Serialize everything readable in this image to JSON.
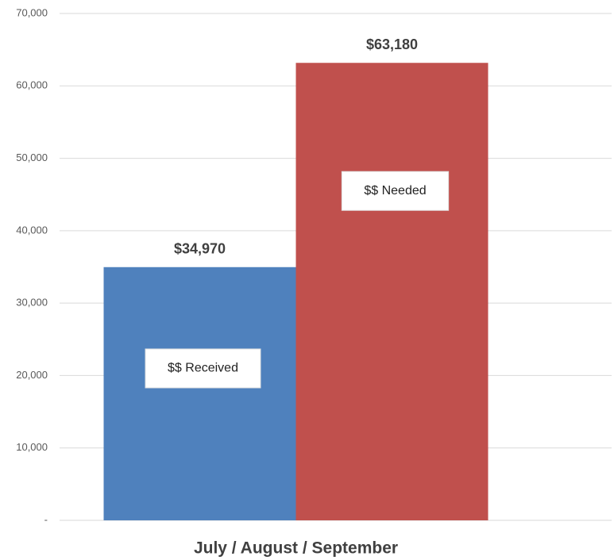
{
  "chart_data": {
    "type": "bar",
    "categories": [
      "July / August / September"
    ],
    "series": [
      {
        "name": "$$ Received",
        "color": "#4f81bd",
        "values": [
          34970
        ],
        "value_labels": [
          "$34,970"
        ]
      },
      {
        "name": "$$ Needed",
        "color": "#c0504d",
        "values": [
          63180
        ],
        "value_labels": [
          "$63,180"
        ]
      }
    ],
    "ylim": [
      0,
      70000
    ],
    "yticks": [
      {
        "value": 0,
        "label": "-"
      },
      {
        "value": 10000,
        "label": "10,000"
      },
      {
        "value": 20000,
        "label": "20,000"
      },
      {
        "value": 30000,
        "label": "30,000"
      },
      {
        "value": 40000,
        "label": "40,000"
      },
      {
        "value": 50000,
        "label": "50,000"
      },
      {
        "value": 60000,
        "label": "60,000"
      },
      {
        "value": 70000,
        "label": "70,000"
      }
    ],
    "grid": true
  }
}
